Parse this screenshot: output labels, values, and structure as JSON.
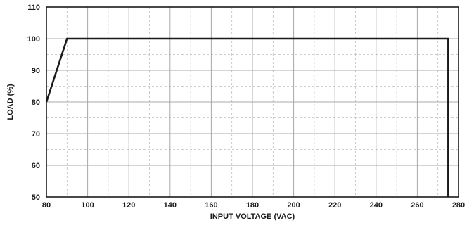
{
  "chart_data": {
    "type": "line",
    "title": "",
    "xlabel": "INPUT VOLTAGE (VAC)",
    "ylabel": "LOAD (%)",
    "xlim": [
      80,
      280
    ],
    "ylim": [
      50,
      110
    ],
    "x_ticks": [
      80,
      100,
      120,
      140,
      160,
      180,
      200,
      220,
      240,
      260,
      280
    ],
    "y_ticks": [
      50,
      60,
      70,
      80,
      90,
      100,
      110
    ],
    "x_minor_step": 10,
    "y_minor_step": 5,
    "grid": true,
    "legend": "none",
    "series": [
      {
        "color": "#1a1a1a",
        "points": [
          {
            "x": 80,
            "y": 80
          },
          {
            "x": 90,
            "y": 100
          },
          {
            "x": 275,
            "y": 100
          },
          {
            "x": 275,
            "y": 50
          }
        ]
      }
    ]
  }
}
